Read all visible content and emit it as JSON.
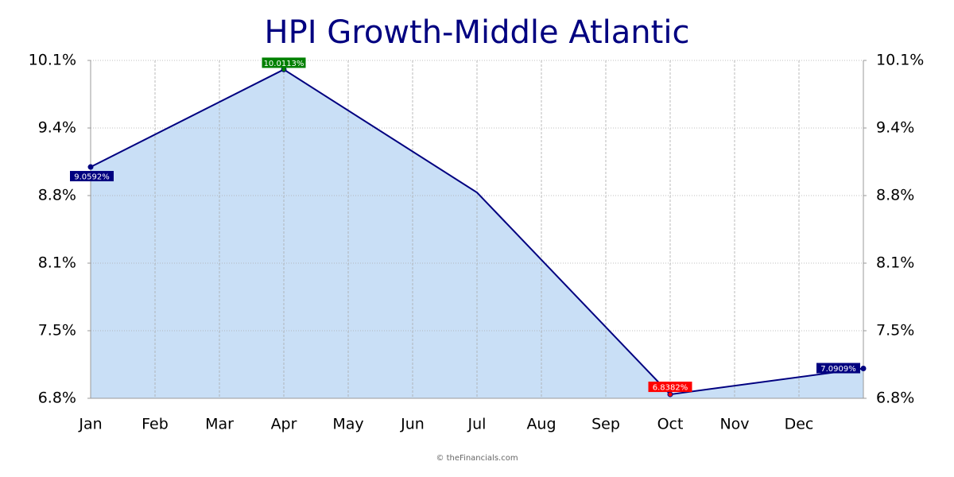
{
  "chart_data": {
    "type": "area",
    "title": "HPI Growth-Middle Atlantic",
    "categories": [
      "Jan",
      "Feb",
      "Mar",
      "Apr",
      "May",
      "Jun",
      "Jul",
      "Aug",
      "Sep",
      "Oct",
      "Nov",
      "Dec",
      null
    ],
    "series": [
      {
        "x": [
          "Jan",
          "Apr",
          "Jul",
          "Oct",
          null
        ],
        "values": [
          9.0592,
          10.0113,
          8.81,
          6.8382,
          7.0909
        ],
        "value_labels": [
          "9.0592%",
          "10.0113%",
          null,
          "6.8382%",
          "7.0909%"
        ],
        "label_colors": [
          "#000080",
          "#008000",
          null,
          "#ff0000",
          "#000080"
        ],
        "color": "#000080",
        "fill": "#c9dff6"
      }
    ],
    "ylim": [
      6.8,
      10.1
    ],
    "yticks": [
      {
        "value": 6.8,
        "label": "6.8%"
      },
      {
        "value": 7.46,
        "label": "7.5%"
      },
      {
        "value": 8.12,
        "label": "8.1%"
      },
      {
        "value": 8.78,
        "label": "8.8%"
      },
      {
        "value": 9.44,
        "label": "9.4%"
      },
      {
        "value": 10.1,
        "label": "10.1%"
      }
    ],
    "grid": true,
    "footer": "© theFinancials.com"
  }
}
